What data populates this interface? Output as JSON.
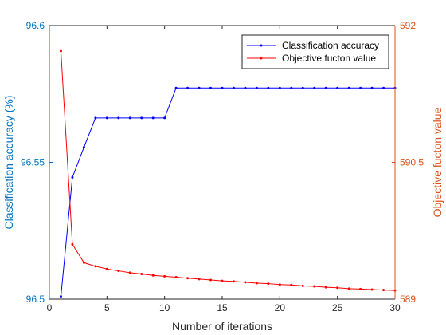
{
  "chart_data": {
    "type": "line",
    "xlabel": "Number of iterations",
    "ylabel_left": "Classification accuracy (%)",
    "ylabel_right": "Objective fucton value",
    "xlim": [
      0,
      30
    ],
    "ylim_left": [
      96.5,
      96.6
    ],
    "ylim_right": [
      589,
      592
    ],
    "xticks": [
      "0",
      "5",
      "10",
      "15",
      "20",
      "25",
      "30"
    ],
    "yticks_left": [
      "96.5",
      "96.55",
      "96.6"
    ],
    "yticks_right": [
      "589",
      "590.5",
      "592"
    ],
    "grid": false,
    "legend_position": "top-right",
    "colors": {
      "left_axis": "#0072BD",
      "right_axis": "#D95319",
      "accuracy_series": "#0000FF",
      "objective_series": "#FF0000"
    },
    "x": [
      1,
      2,
      3,
      4,
      5,
      6,
      7,
      8,
      9,
      10,
      11,
      12,
      13,
      14,
      15,
      16,
      17,
      18,
      19,
      20,
      21,
      22,
      23,
      24,
      25,
      26,
      27,
      28,
      29,
      30
    ],
    "series": [
      {
        "name": "Classification accuracy",
        "axis": "left",
        "values": [
          96.501,
          96.5445,
          96.5555,
          96.5662,
          96.5662,
          96.5662,
          96.5662,
          96.5662,
          96.5662,
          96.5662,
          96.5772,
          96.5772,
          96.5772,
          96.5772,
          96.5772,
          96.5772,
          96.5772,
          96.5772,
          96.5772,
          96.5772,
          96.5772,
          96.5772,
          96.5772,
          96.5772,
          96.5772,
          96.5772,
          96.5772,
          96.5772,
          96.5772,
          96.5772
        ]
      },
      {
        "name": "Objective fucton value",
        "axis": "right",
        "values": [
          591.72,
          589.6,
          589.4,
          589.36,
          589.33,
          589.31,
          589.29,
          589.275,
          589.26,
          589.25,
          589.24,
          589.23,
          589.22,
          589.21,
          589.2,
          589.195,
          589.185,
          589.175,
          589.17,
          589.16,
          589.155,
          589.145,
          589.14,
          589.13,
          589.125,
          589.115,
          589.11,
          589.105,
          589.1,
          589.095
        ]
      }
    ]
  }
}
